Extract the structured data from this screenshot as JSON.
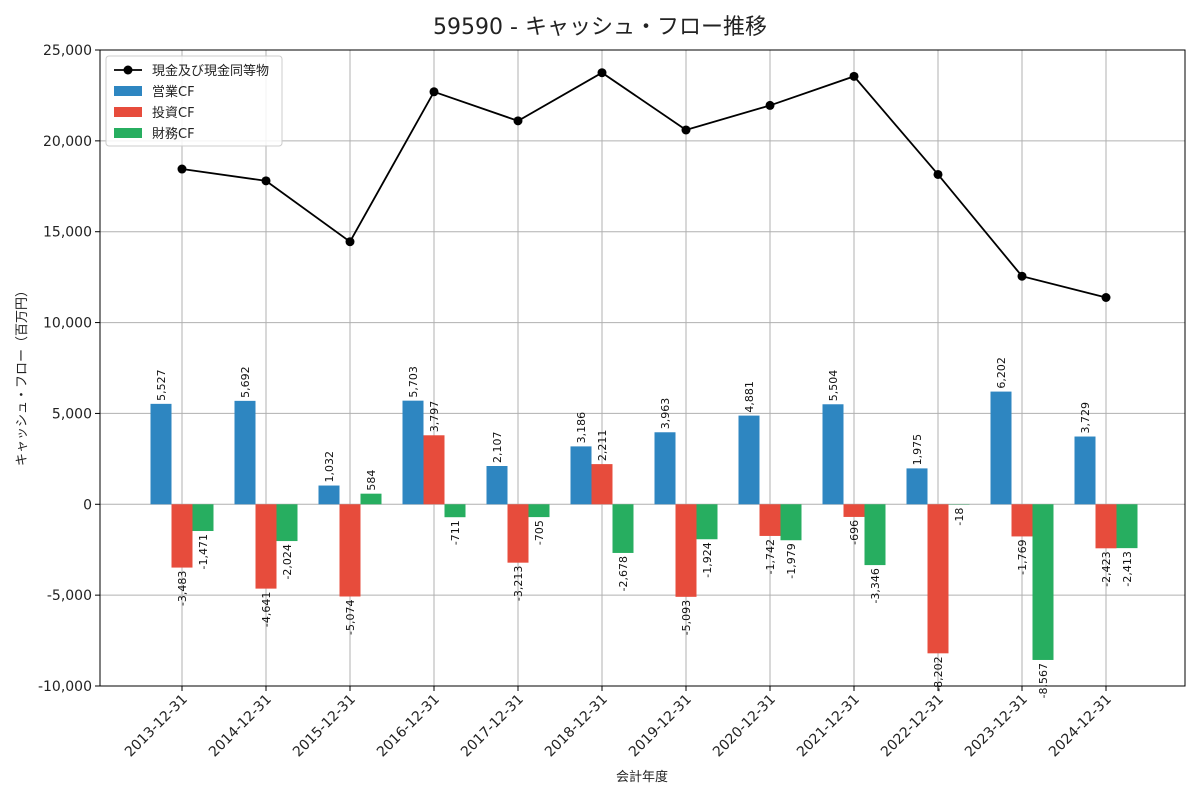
{
  "chart_data": {
    "type": "bar",
    "title": "59590 - キャッシュ・フロー推移",
    "xlabel": "会計年度",
    "ylabel": "キャッシュ・フロー（百万円）",
    "ylim": [
      -10000,
      25000
    ],
    "yticks": [
      -10000,
      -5000,
      0,
      5000,
      10000,
      15000,
      20000,
      25000
    ],
    "ytick_labels": [
      "-10,000",
      "-5,000",
      "0",
      "5,000",
      "10,000",
      "15,000",
      "20,000",
      "25,000"
    ],
    "grid": true,
    "legend_position": "top-left",
    "categories": [
      "2013-12-31",
      "2014-12-31",
      "2015-12-31",
      "2016-12-31",
      "2017-12-31",
      "2018-12-31",
      "2019-12-31",
      "2020-12-31",
      "2021-12-31",
      "2022-12-31",
      "2023-12-31",
      "2024-12-31"
    ],
    "series": [
      {
        "name": "営業CF",
        "kind": "bar",
        "color": "#2e86c1",
        "values": [
          5527,
          5692,
          1032,
          5703,
          2107,
          3186,
          3963,
          4881,
          5504,
          1975,
          6202,
          3729
        ],
        "labels": [
          "5,527",
          "5,692",
          "1,032",
          "5,703",
          "2,107",
          "3,186",
          "3,963",
          "4,881",
          "5,504",
          "1,975",
          "6,202",
          "3,729"
        ]
      },
      {
        "name": "投資CF",
        "kind": "bar",
        "color": "#e74c3c",
        "values": [
          -3483,
          -4641,
          -5074,
          3797,
          -3213,
          2211,
          -5093,
          -1742,
          -696,
          -8202,
          -1769,
          -2423
        ],
        "labels": [
          "-3,483",
          "-4,641",
          "-5,074",
          "3,797",
          "-3,213",
          "2,211",
          "-5,093",
          "-1,742",
          "-696",
          "-8,202",
          "-1,769",
          "-2,423"
        ]
      },
      {
        "name": "財務CF",
        "kind": "bar",
        "color": "#27ae60",
        "values": [
          -1471,
          -2024,
          584,
          -711,
          -705,
          -2678,
          -1924,
          -1979,
          -3346,
          -18,
          -8567,
          -2413
        ],
        "labels": [
          "-1,471",
          "-2,024",
          "584",
          "-711",
          "-705",
          "-2,678",
          "-1,924",
          "-1,979",
          "-3,346",
          "-18",
          "-8,567",
          "-2,413"
        ]
      },
      {
        "name": "現金及び現金同等物",
        "kind": "line",
        "color": "#000000",
        "values": [
          18450,
          17800,
          14450,
          22700,
          21100,
          23750,
          20600,
          21950,
          23550,
          18150,
          12550,
          11380
        ]
      }
    ]
  }
}
